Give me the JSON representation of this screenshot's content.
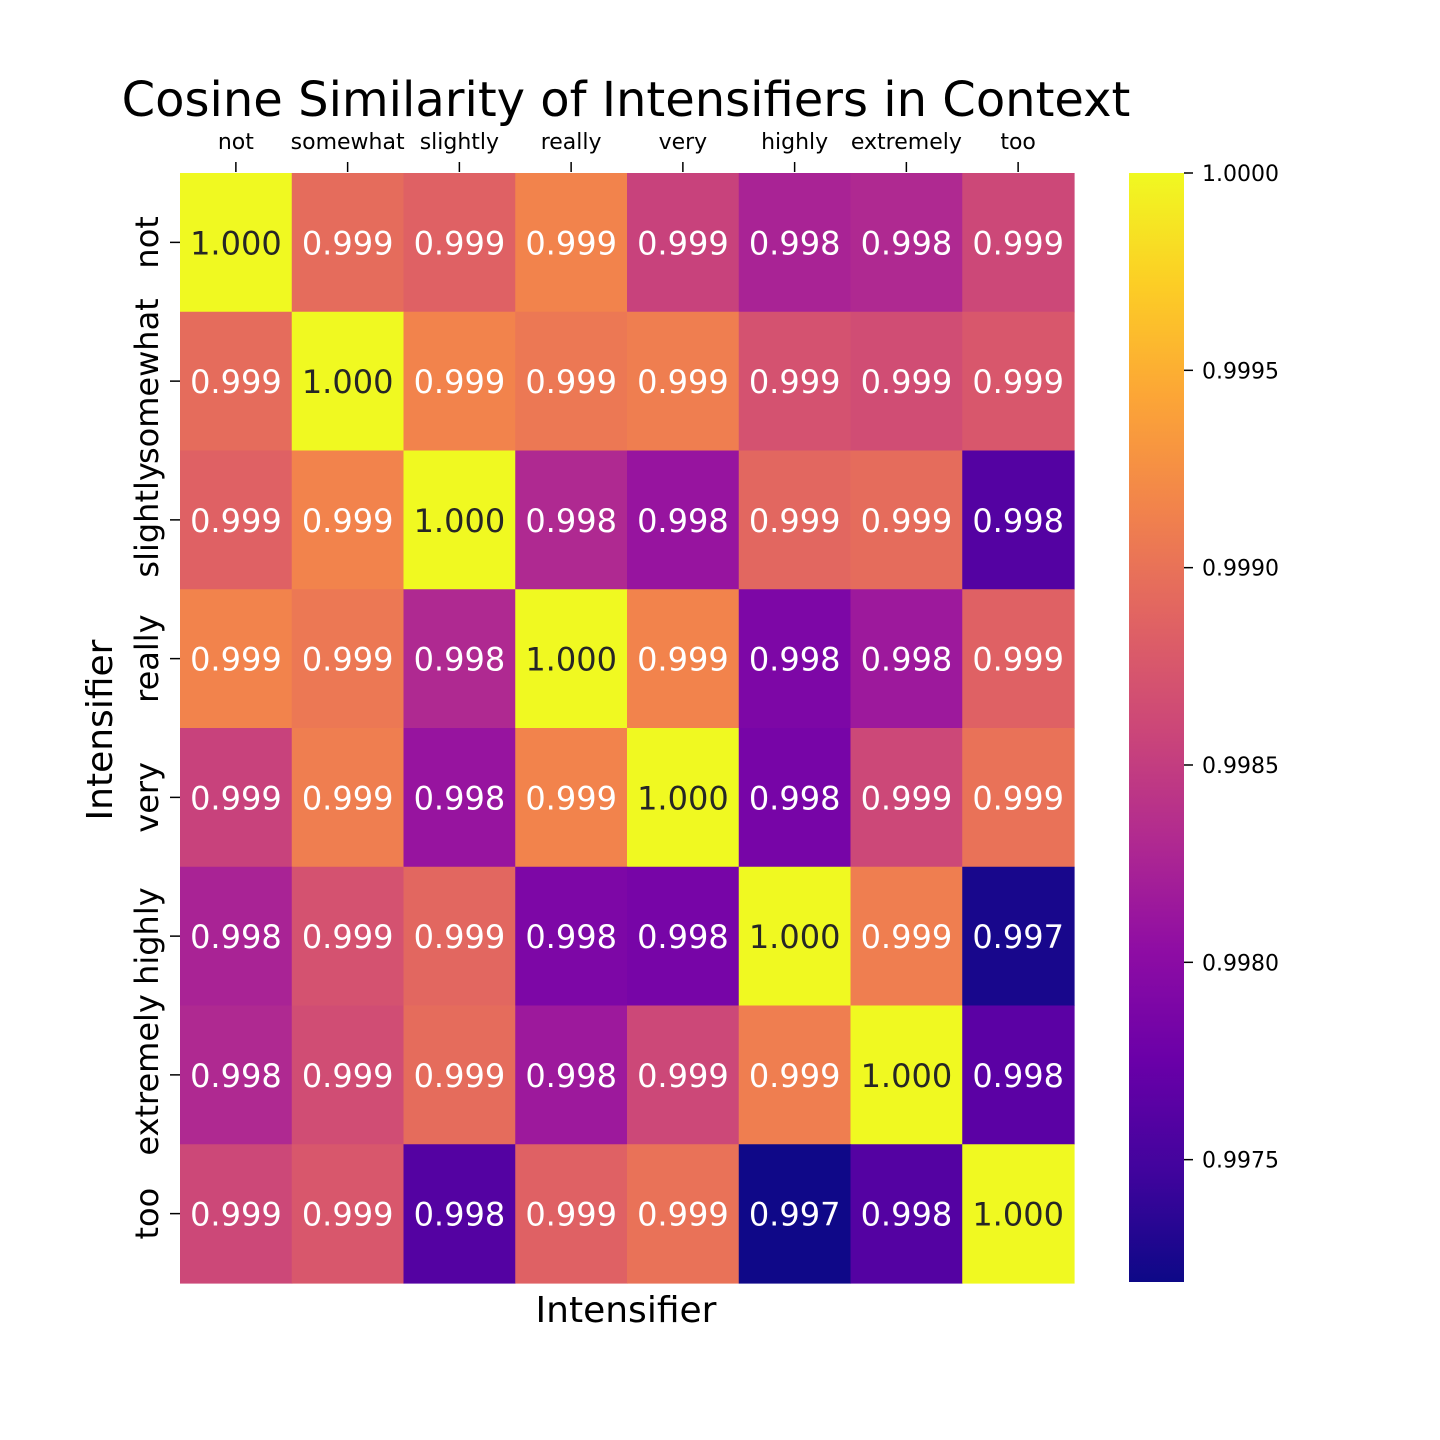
{
  "chart_data": {
    "type": "heatmap",
    "title": "Cosine Similarity of Intensifiers in Context",
    "xlabel": "Intensifier",
    "ylabel": "Intensifier",
    "x_tick_position": "top",
    "categories": [
      "not",
      "somewhat",
      "slightly",
      "really",
      "very",
      "highly",
      "extremely",
      "too"
    ],
    "values": [
      [
        1.0,
        0.99895,
        0.99885,
        0.99915,
        0.99855,
        0.99825,
        0.9983,
        0.9986
      ],
      [
        0.99895,
        1.0,
        0.99915,
        0.99905,
        0.9991,
        0.9987,
        0.99865,
        0.99875
      ],
      [
        0.99885,
        0.99915,
        1.0,
        0.9983,
        0.9981,
        0.9989,
        0.99895,
        0.9976
      ],
      [
        0.99915,
        0.99905,
        0.9983,
        1.0,
        0.99915,
        0.9979,
        0.99815,
        0.99885
      ],
      [
        0.99855,
        0.9991,
        0.9981,
        0.99915,
        1.0,
        0.99785,
        0.9986,
        0.999
      ],
      [
        0.99825,
        0.9987,
        0.9989,
        0.9979,
        0.99785,
        1.0,
        0.9991,
        0.99725
      ],
      [
        0.9983,
        0.99865,
        0.99895,
        0.99815,
        0.9986,
        0.9991,
        1.0,
        0.99765
      ],
      [
        0.9986,
        0.99875,
        0.9976,
        0.99885,
        0.999,
        0.9972,
        0.9976,
        1.0
      ]
    ],
    "cell_labels": [
      [
        "1.000",
        "0.999",
        "0.999",
        "0.999",
        "0.999",
        "0.998",
        "0.998",
        "0.999"
      ],
      [
        "0.999",
        "1.000",
        "0.999",
        "0.999",
        "0.999",
        "0.999",
        "0.999",
        "0.999"
      ],
      [
        "0.999",
        "0.999",
        "1.000",
        "0.998",
        "0.998",
        "0.999",
        "0.999",
        "0.998"
      ],
      [
        "0.999",
        "0.999",
        "0.998",
        "1.000",
        "0.999",
        "0.998",
        "0.998",
        "0.999"
      ],
      [
        "0.999",
        "0.999",
        "0.998",
        "0.999",
        "1.000",
        "0.998",
        "0.999",
        "0.999"
      ],
      [
        "0.998",
        "0.999",
        "0.999",
        "0.998",
        "0.998",
        "1.000",
        "0.999",
        "0.997"
      ],
      [
        "0.998",
        "0.999",
        "0.999",
        "0.998",
        "0.999",
        "0.999",
        "1.000",
        "0.998"
      ],
      [
        "0.999",
        "0.999",
        "0.998",
        "0.999",
        "0.999",
        "0.997",
        "0.998",
        "1.000"
      ]
    ],
    "colormap": "plasma",
    "colorbar": {
      "min": 0.99719,
      "max": 1.0,
      "ticks": [
        1.0,
        0.9995,
        0.999,
        0.9985,
        0.998,
        0.9975
      ],
      "tick_labels": [
        "1.0000",
        "0.9995",
        "0.9990",
        "0.9985",
        "0.9980",
        "0.9975"
      ]
    },
    "grid": false,
    "legend": "colorbar-right"
  }
}
